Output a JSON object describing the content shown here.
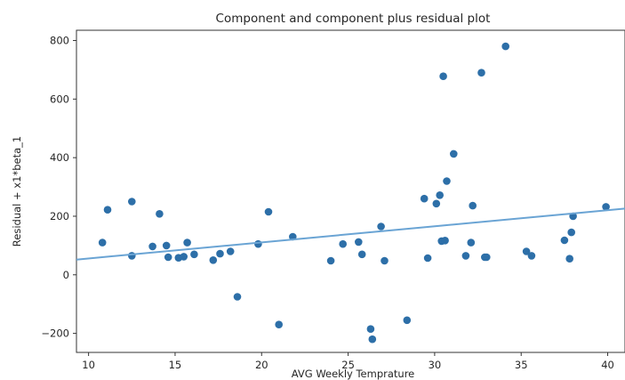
{
  "chart_data": {
    "type": "scatter",
    "title": "Component and component plus residual plot",
    "xlabel": "AVG Weekly Temprature",
    "ylabel": "Residual + x1*beta_1",
    "xlim": [
      9.3,
      41
    ],
    "ylim": [
      -265,
      835
    ],
    "xticks": [
      10,
      15,
      20,
      25,
      30,
      35,
      40
    ],
    "yticks": [
      -200,
      0,
      200,
      400,
      600,
      800
    ],
    "xtick_labels": [
      "10",
      "15",
      "20",
      "25",
      "30",
      "35",
      "40"
    ],
    "ytick_labels": [
      "−200",
      "0",
      "200",
      "400",
      "600",
      "800"
    ],
    "grid": false,
    "colors": {
      "points": "#2d6fa8",
      "line": "#6aa4d4"
    },
    "series": [
      {
        "kind": "points",
        "x": [
          10.8,
          11.1,
          12.5,
          12.5,
          13.7,
          14.1,
          14.5,
          14.6,
          15.2,
          15.5,
          15.7,
          16.1,
          17.2,
          17.6,
          18.2,
          18.6,
          19.8,
          20.4,
          21.0,
          21.8,
          24.0,
          24.7,
          25.6,
          25.8,
          26.3,
          26.4,
          26.9,
          27.1,
          28.4,
          29.4,
          29.6,
          30.1,
          30.3,
          30.4,
          30.5,
          30.6,
          30.7,
          31.1,
          31.8,
          32.1,
          32.2,
          32.7,
          32.9,
          33.0,
          34.1,
          35.3,
          35.6,
          37.5,
          37.8,
          37.9,
          38.0,
          39.9
        ],
        "y": [
          110,
          222,
          250,
          65,
          97,
          208,
          100,
          60,
          58,
          62,
          110,
          70,
          50,
          72,
          80,
          -75,
          105,
          215,
          -170,
          130,
          48,
          105,
          112,
          70,
          -185,
          -220,
          165,
          48,
          -155,
          260,
          57,
          243,
          272,
          115,
          678,
          117,
          320,
          413,
          65,
          110,
          236,
          690,
          60,
          60,
          780,
          80,
          65,
          118,
          55,
          145,
          200,
          232
        ]
      },
      {
        "kind": "fit-line",
        "x": [
          9.3,
          41
        ],
        "y": [
          52,
          226
        ]
      }
    ]
  }
}
